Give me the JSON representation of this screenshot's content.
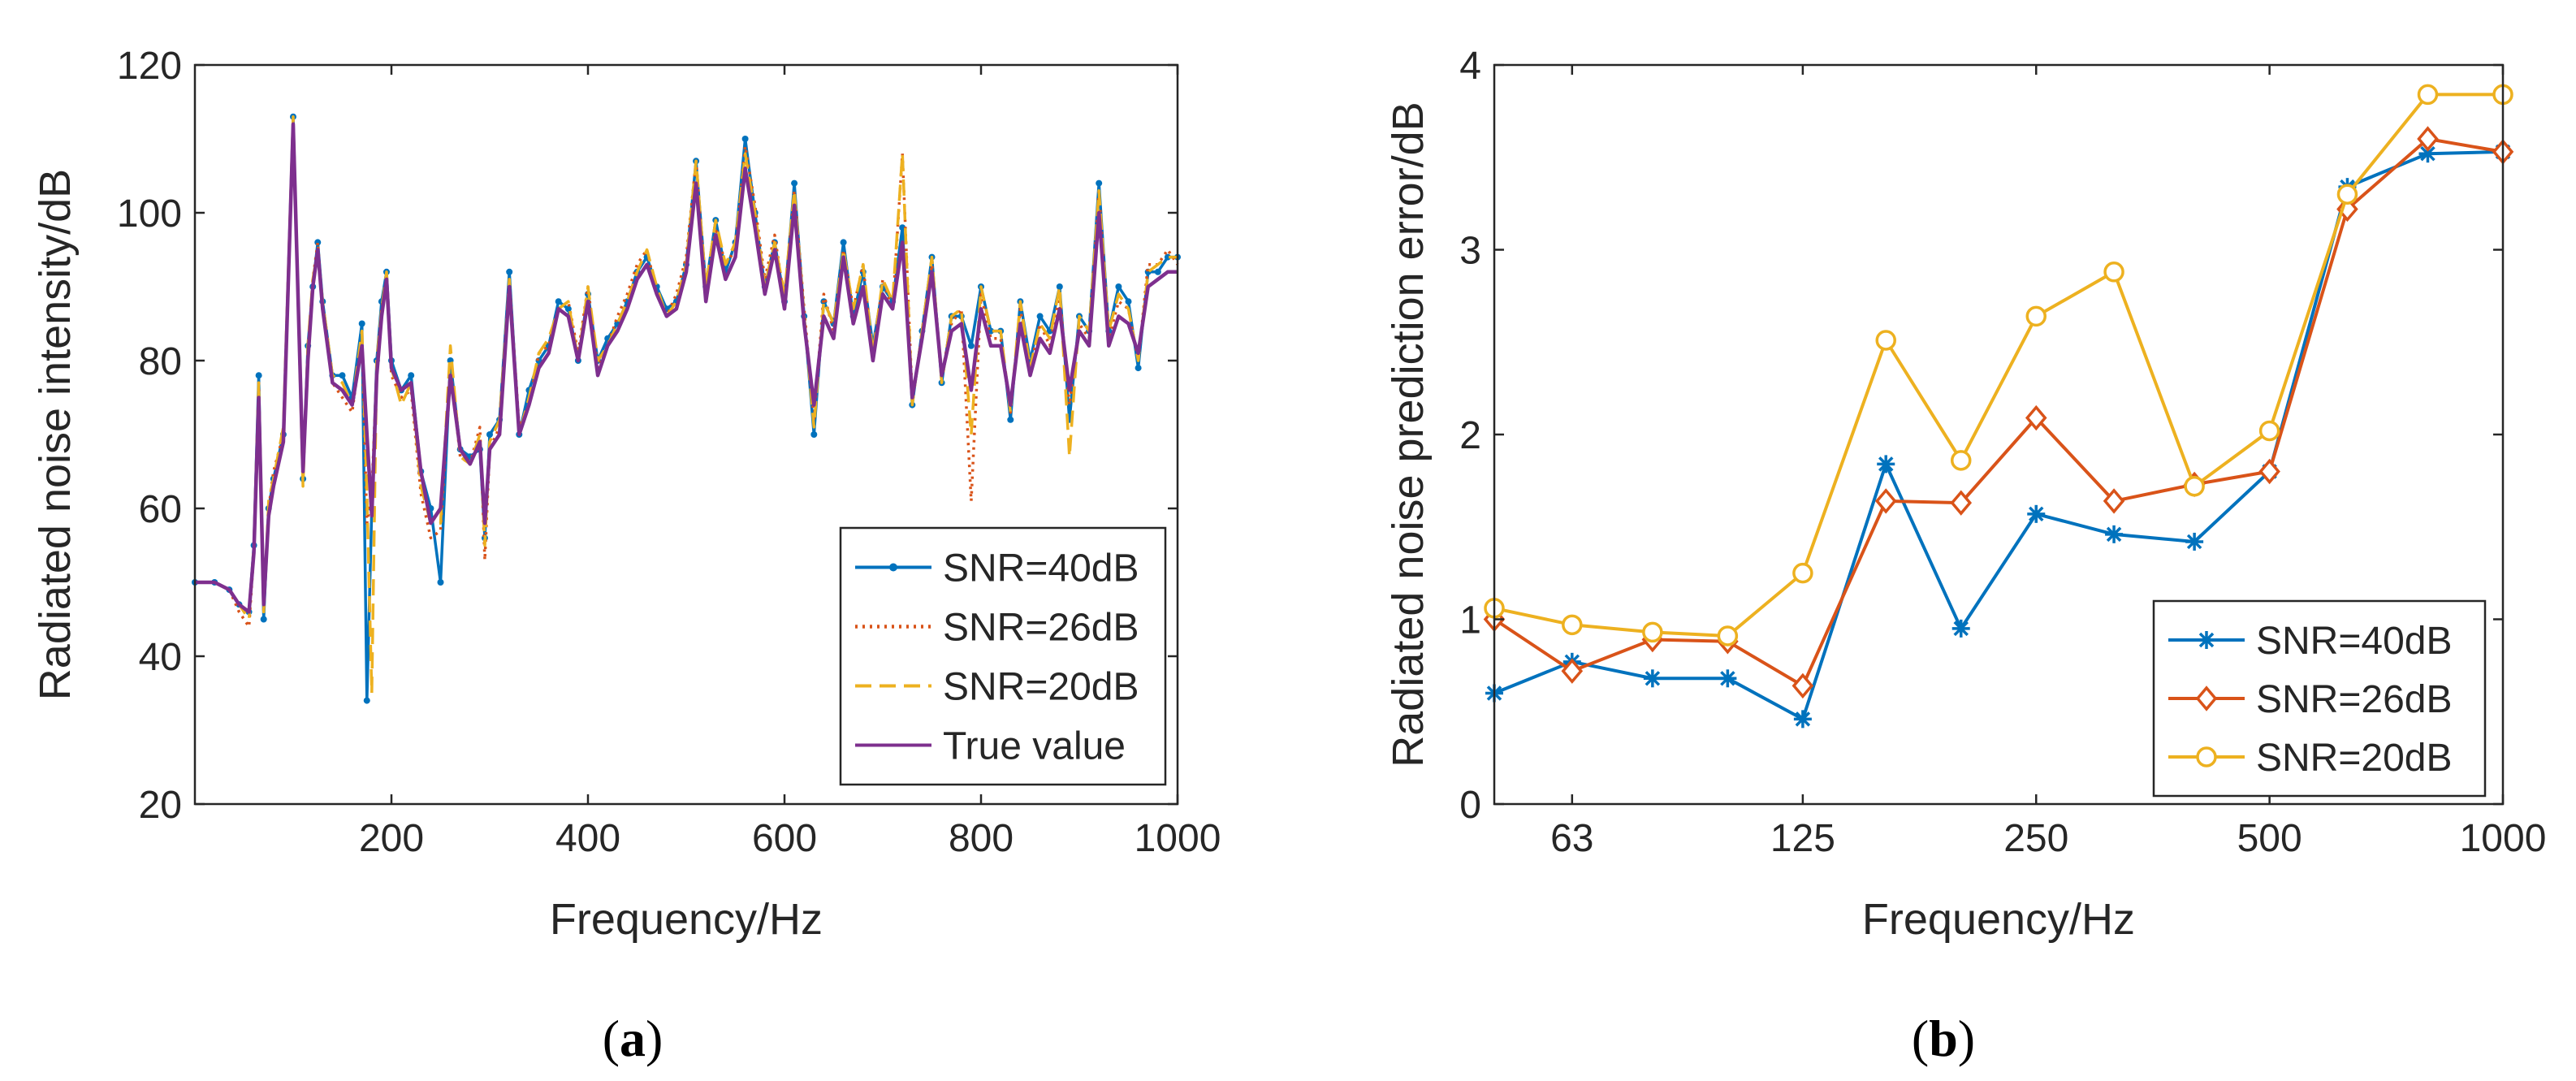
{
  "chart_data": [
    {
      "type": "line",
      "panel_label": "a",
      "title": "",
      "xlabel": "Frequency/Hz",
      "ylabel": "Radiated noise intensity/dB",
      "xlim": [
        0,
        1000
      ],
      "ylim": [
        20,
        120
      ],
      "xticks": [
        200,
        400,
        600,
        800,
        1000
      ],
      "yticks": [
        20,
        40,
        60,
        80,
        100,
        120
      ],
      "grid": false,
      "legend_position": "bottom-right",
      "x": [
        0,
        20,
        35,
        45,
        55,
        60,
        65,
        70,
        75,
        80,
        90,
        100,
        110,
        115,
        120,
        125,
        130,
        140,
        150,
        160,
        170,
        175,
        180,
        185,
        190,
        195,
        200,
        210,
        220,
        230,
        240,
        250,
        260,
        270,
        280,
        290,
        295,
        300,
        310,
        320,
        330,
        340,
        350,
        360,
        370,
        380,
        390,
        400,
        410,
        420,
        430,
        440,
        450,
        460,
        470,
        480,
        490,
        500,
        510,
        520,
        530,
        540,
        550,
        560,
        570,
        580,
        590,
        600,
        610,
        620,
        630,
        640,
        650,
        660,
        670,
        680,
        690,
        700,
        710,
        720,
        730,
        740,
        750,
        760,
        770,
        780,
        790,
        800,
        810,
        820,
        830,
        840,
        850,
        860,
        870,
        880,
        890,
        900,
        910,
        920,
        930,
        940,
        950,
        960,
        970,
        980,
        990,
        1000
      ],
      "series": [
        {
          "name": "SNR=40dB",
          "style": "solid-dot",
          "color": "#0072BD",
          "values": [
            50,
            50,
            49,
            47,
            46,
            55,
            78,
            45,
            60,
            64,
            70,
            113,
            64,
            82,
            90,
            96,
            88,
            78,
            78,
            75,
            85,
            34,
            60,
            80,
            88,
            92,
            80,
            76,
            78,
            65,
            60,
            50,
            80,
            68,
            67,
            68,
            56,
            70,
            72,
            92,
            70,
            76,
            80,
            82,
            88,
            87,
            80,
            89,
            80,
            83,
            85,
            88,
            92,
            94,
            90,
            87,
            88,
            93,
            107,
            90,
            99,
            92,
            96,
            110,
            100,
            90,
            96,
            88,
            104,
            86,
            70,
            88,
            85,
            96,
            86,
            92,
            82,
            90,
            88,
            98,
            74,
            84,
            94,
            77,
            86,
            86,
            82,
            90,
            84,
            84,
            72,
            88,
            80,
            86,
            84,
            90,
            72,
            86,
            84,
            104,
            84,
            90,
            88,
            79,
            92,
            92,
            94,
            94
          ]
        },
        {
          "name": "SNR=26dB",
          "style": "dotted",
          "color": "#D95319",
          "values": [
            50,
            50,
            49,
            46,
            44,
            54,
            77,
            46,
            60,
            65,
            70,
            112,
            65,
            81,
            91,
            96,
            87,
            77,
            75,
            73,
            83,
            58,
            62,
            79,
            87,
            91,
            78,
            75,
            76,
            62,
            56,
            57,
            79,
            67,
            66,
            71,
            53,
            68,
            71,
            91,
            71,
            74,
            81,
            82,
            87,
            88,
            81,
            90,
            79,
            82,
            86,
            89,
            93,
            95,
            89,
            86,
            89,
            94,
            107,
            89,
            98,
            93,
            95,
            109,
            101,
            91,
            97,
            88,
            103,
            87,
            72,
            89,
            84,
            95,
            87,
            93,
            80,
            91,
            87,
            108,
            75,
            83,
            93,
            78,
            85,
            87,
            61,
            89,
            83,
            83,
            73,
            87,
            79,
            85,
            82,
            89,
            74,
            85,
            83,
            103,
            83,
            88,
            87,
            80,
            93,
            93,
            95,
            93
          ]
        },
        {
          "name": "SNR=20dB",
          "style": "dashed",
          "color": "#EDB120",
          "values": [
            50,
            50,
            49,
            47,
            45,
            55,
            77,
            46,
            61,
            64,
            71,
            113,
            63,
            82,
            91,
            95,
            88,
            78,
            77,
            74,
            84,
            62,
            35,
            80,
            87,
            92,
            79,
            74,
            77,
            63,
            58,
            58,
            82,
            67,
            66,
            70,
            55,
            69,
            72,
            91,
            70,
            75,
            81,
            83,
            87,
            88,
            80,
            90,
            80,
            82,
            85,
            88,
            92,
            95,
            90,
            86,
            88,
            93,
            107,
            90,
            99,
            93,
            96,
            108,
            100,
            90,
            96,
            89,
            103,
            86,
            71,
            88,
            85,
            95,
            87,
            93,
            81,
            91,
            88,
            108,
            74,
            84,
            94,
            77,
            86,
            87,
            70,
            90,
            84,
            84,
            73,
            88,
            79,
            85,
            83,
            90,
            67,
            86,
            84,
            103,
            84,
            89,
            87,
            80,
            92,
            93,
            94,
            94
          ]
        },
        {
          "name": "True value",
          "style": "solid",
          "color": "#7E2F8E",
          "values": [
            50,
            50,
            49,
            47,
            46,
            54,
            75,
            47,
            59,
            63,
            69,
            112,
            65,
            80,
            90,
            95,
            87,
            77,
            76,
            74,
            82,
            70,
            59,
            78,
            86,
            91,
            79,
            76,
            77,
            65,
            58,
            60,
            78,
            68,
            66,
            69,
            58,
            68,
            70,
            90,
            70,
            74,
            79,
            81,
            87,
            86,
            80,
            88,
            78,
            82,
            84,
            87,
            91,
            93,
            89,
            86,
            87,
            92,
            104,
            88,
            97,
            91,
            94,
            106,
            98,
            89,
            95,
            87,
            101,
            85,
            74,
            86,
            83,
            94,
            85,
            90,
            80,
            89,
            87,
            96,
            75,
            83,
            92,
            78,
            84,
            85,
            76,
            87,
            82,
            82,
            74,
            85,
            78,
            83,
            81,
            87,
            76,
            84,
            82,
            100,
            82,
            86,
            85,
            81,
            90,
            91,
            92,
            92
          ]
        }
      ]
    },
    {
      "type": "line",
      "panel_label": "b",
      "title": "",
      "xlabel": "Frequency/Hz",
      "ylabel": "Radiated noise prediction error/dB",
      "xscale": "log",
      "x": [
        50,
        63,
        80,
        100,
        125,
        160,
        200,
        250,
        315,
        400,
        500,
        630,
        800,
        1000
      ],
      "xlim": [
        50,
        1000
      ],
      "ylim": [
        0,
        4
      ],
      "xticks": [
        63,
        125,
        250,
        500,
        1000
      ],
      "yticks": [
        0,
        1,
        2,
        3,
        4
      ],
      "grid": false,
      "legend_position": "bottom-right",
      "series": [
        {
          "name": "SNR=40dB",
          "marker": "asterisk",
          "color": "#0072BD",
          "values": [
            0.6,
            0.77,
            0.68,
            0.68,
            0.46,
            1.84,
            0.95,
            1.57,
            1.46,
            1.42,
            1.8,
            3.34,
            3.52,
            3.53
          ]
        },
        {
          "name": "SNR=26dB",
          "marker": "diamond",
          "color": "#D95319",
          "values": [
            1.0,
            0.72,
            0.89,
            0.88,
            0.64,
            1.64,
            1.63,
            2.09,
            1.64,
            1.73,
            1.8,
            3.22,
            3.6,
            3.53
          ]
        },
        {
          "name": "SNR=20dB",
          "marker": "circle",
          "color": "#EDB120",
          "values": [
            1.06,
            0.97,
            0.93,
            0.91,
            1.25,
            2.51,
            1.86,
            2.64,
            2.88,
            1.72,
            2.02,
            3.3,
            3.84,
            3.84
          ]
        }
      ]
    }
  ]
}
